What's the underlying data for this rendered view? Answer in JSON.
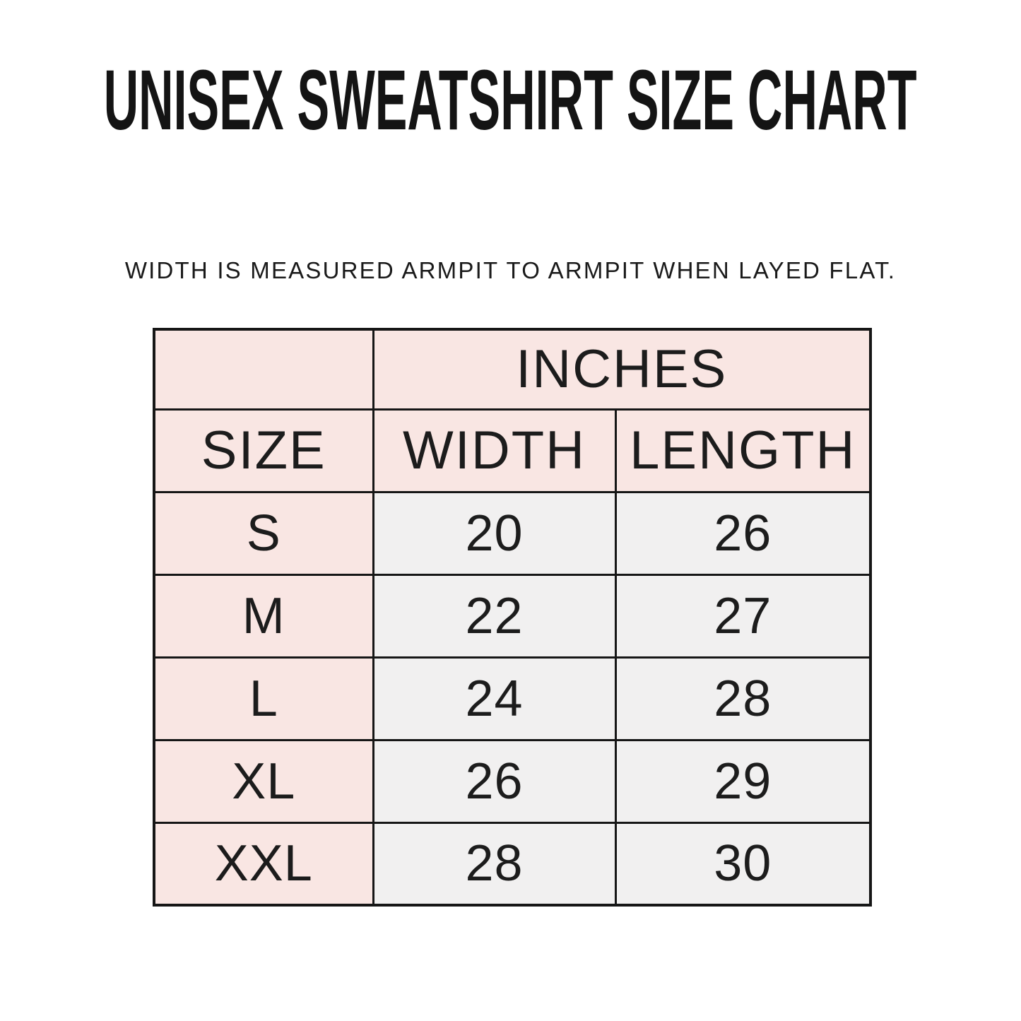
{
  "page": {
    "title": "UNISEX SWEATSHIRT SIZE CHART",
    "subtitle": "WIDTH IS MEASURED ARMPIT TO ARMPIT WHEN LAYED FLAT."
  },
  "table": {
    "unit_header": "INCHES",
    "columns": [
      "SIZE",
      "WIDTH",
      "LENGTH"
    ],
    "rows": [
      {
        "size": "S",
        "width": "20",
        "length": "26"
      },
      {
        "size": "M",
        "width": "22",
        "length": "27"
      },
      {
        "size": "L",
        "width": "24",
        "length": "28"
      },
      {
        "size": "XL",
        "width": "26",
        "length": "29"
      },
      {
        "size": "XXL",
        "width": "28",
        "length": "30"
      }
    ]
  },
  "colors": {
    "header_pink": "#f9e6e3",
    "cell_gray": "#f1f0f0",
    "border_black": "#161616",
    "text": "#1c1c1c",
    "background": "#ffffff"
  },
  "chart_data": {
    "type": "table",
    "title": "UNISEX SWEATSHIRT SIZE CHART",
    "note": "WIDTH IS MEASURED ARMPIT TO ARMPIT WHEN LAYED FLAT.",
    "unit": "INCHES",
    "columns": [
      "SIZE",
      "WIDTH",
      "LENGTH"
    ],
    "rows": [
      [
        "S",
        20,
        26
      ],
      [
        "M",
        22,
        27
      ],
      [
        "L",
        24,
        28
      ],
      [
        "XL",
        26,
        29
      ],
      [
        "XXL",
        28,
        30
      ]
    ]
  }
}
